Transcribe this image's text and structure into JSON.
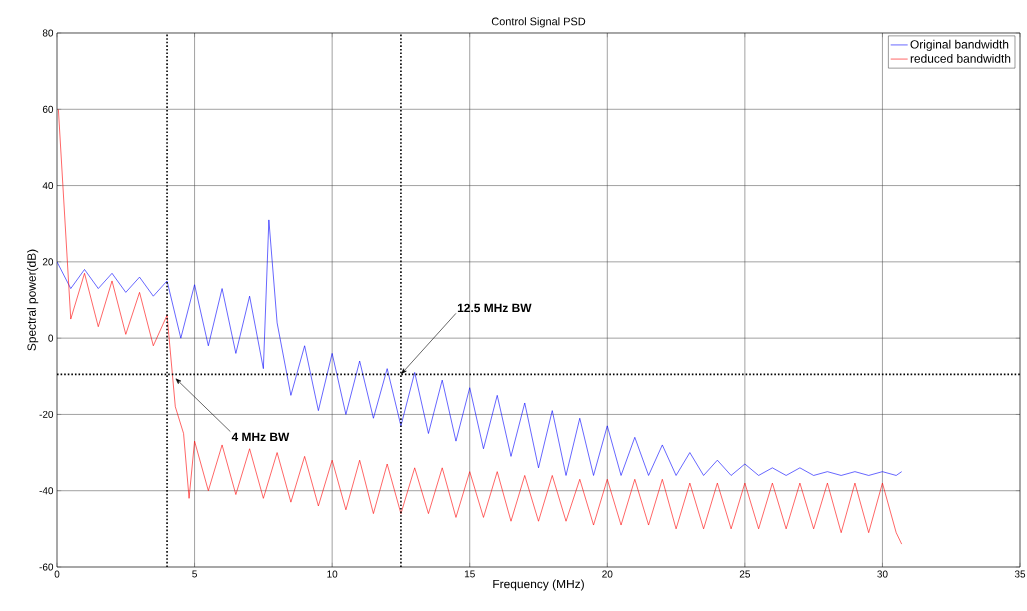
{
  "chart_data": {
    "type": "line",
    "title": "Control Signal PSD",
    "xlabel": "Frequency (MHz)",
    "ylabel": "Spectral power(dB)",
    "xlim": [
      0,
      35
    ],
    "ylim": [
      -60,
      80
    ],
    "xticks": [
      0,
      5,
      10,
      15,
      20,
      25,
      30,
      35
    ],
    "yticks": [
      -60,
      -40,
      -20,
      0,
      20,
      40,
      60,
      80
    ],
    "grid": true,
    "legend": "top right",
    "line_style": "solid",
    "series": [
      {
        "name": "Original bandwidth",
        "color": "#0000ff",
        "x": [
          0,
          0.5,
          1,
          1.5,
          2,
          2.5,
          3,
          3.5,
          4,
          4.5,
          5,
          5.5,
          6,
          6.5,
          7,
          7.5,
          7.7,
          8,
          8.5,
          9,
          9.5,
          10,
          10.5,
          11,
          11.5,
          12,
          12.5,
          13,
          13.5,
          14,
          14.5,
          15,
          15.5,
          16,
          16.5,
          17,
          17.5,
          18,
          18.5,
          19,
          19.5,
          20,
          20.5,
          21,
          21.5,
          22,
          22.5,
          23,
          23.5,
          24,
          24.5,
          25,
          25.5,
          26,
          26.5,
          27,
          27.5,
          28,
          28.5,
          29,
          29.5,
          30,
          30.5,
          30.7
        ],
        "values": [
          20,
          13,
          18,
          13,
          17,
          12,
          16,
          11,
          15,
          0,
          14,
          -2,
          13,
          -4,
          11,
          -8,
          31,
          4,
          -15,
          -2,
          -19,
          -4,
          -20,
          -6,
          -21,
          -8,
          -23,
          -9,
          -25,
          -11,
          -27,
          -13,
          -29,
          -15,
          -31,
          -17,
          -34,
          -19,
          -36,
          -21,
          -36,
          -23,
          -36,
          -26,
          -36,
          -28,
          -36,
          -30,
          -36,
          -32,
          -36,
          -33,
          -36,
          -34,
          -36,
          -34,
          -36,
          -35,
          -36,
          -35,
          -36,
          -35,
          -36,
          -35
        ]
      },
      {
        "name": "reduced bandwidth",
        "color": "#ff0000",
        "x": [
          0.05,
          0.5,
          1,
          1.5,
          2,
          2.5,
          3,
          3.5,
          4,
          4.3,
          4.6,
          4.8,
          5,
          5.5,
          6,
          6.5,
          7,
          7.5,
          8,
          8.5,
          9,
          9.5,
          10,
          10.5,
          11,
          11.5,
          12,
          12.5,
          13,
          13.5,
          14,
          14.5,
          15,
          15.5,
          16,
          16.5,
          17,
          17.5,
          18,
          18.5,
          19,
          19.5,
          20,
          20.5,
          21,
          21.5,
          22,
          22.5,
          23,
          23.5,
          24,
          24.5,
          25,
          25.5,
          26,
          26.5,
          27,
          27.5,
          28,
          28.5,
          29,
          29.5,
          30,
          30.5,
          30.7
        ],
        "values": [
          60,
          5,
          17,
          3,
          15,
          1,
          12,
          -2,
          6,
          -18,
          -25,
          -42,
          -27,
          -40,
          -28,
          -41,
          -29,
          -42,
          -30,
          -43,
          -31,
          -44,
          -32,
          -45,
          -32,
          -46,
          -33,
          -46,
          -34,
          -46,
          -34,
          -47,
          -35,
          -47,
          -35,
          -48,
          -36,
          -48,
          -36,
          -48,
          -37,
          -49,
          -37,
          -49,
          -37,
          -49,
          -37,
          -50,
          -38,
          -50,
          -38,
          -50,
          -38,
          -50,
          -38,
          -50,
          -38,
          -50,
          -38,
          -51,
          -38,
          -51,
          -38,
          -51,
          -54
        ]
      }
    ],
    "ref_lines": [
      {
        "axis": "x",
        "value": 4,
        "color": "#000000",
        "line_style": "dotted"
      },
      {
        "axis": "x",
        "value": 12.5,
        "color": "#000000",
        "line_style": "dotted"
      },
      {
        "axis": "y",
        "value": -9.5,
        "color": "#000000",
        "line_style": "dotted"
      }
    ],
    "annotations": [
      {
        "text": "12.5 MHz BW",
        "x": 12.5,
        "y": -9.5
      },
      {
        "text": "4 MHz BW",
        "x": 4.3,
        "y": -10.5
      }
    ]
  }
}
